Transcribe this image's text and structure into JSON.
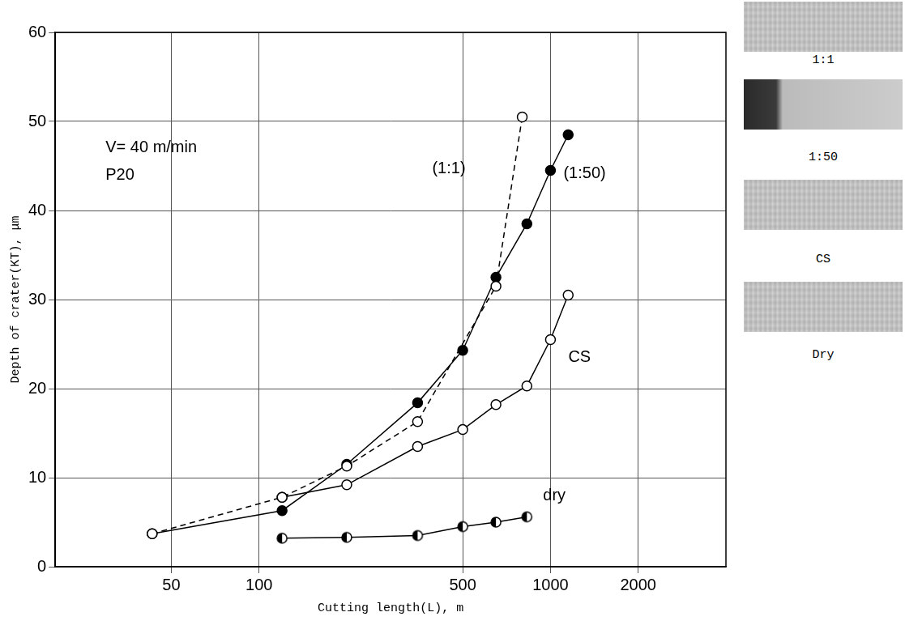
{
  "chart_data": {
    "type": "line",
    "x_label": "Cutting length(L), m",
    "y_label": "Depth of crater(KT), μm",
    "annotations": [
      "V= 40 m/min",
      "P20"
    ],
    "log": "x",
    "xlim": [
      20,
      4000
    ],
    "xticks": [
      50,
      100,
      500,
      1000,
      2000
    ],
    "ylim": [
      0,
      60
    ],
    "yticks": [
      0,
      10,
      20,
      30,
      40,
      50,
      60
    ],
    "grid": true,
    "series": [
      {
        "name": "(1:1)",
        "color": "#000000",
        "marker": "open_circle",
        "line_style": "dashed",
        "x": [
          43,
          120,
          200,
          350,
          650,
          800
        ],
        "values": [
          3.7,
          7.8,
          11.3,
          16.3,
          31.5,
          50.5
        ]
      },
      {
        "name": "(1:50)",
        "color": "#000000",
        "marker": "filled_circle",
        "line_style": "solid",
        "x": [
          43,
          120,
          200,
          350,
          500,
          650,
          830,
          1000,
          1150
        ],
        "values": [
          3.7,
          6.3,
          11.5,
          18.4,
          24.3,
          32.5,
          38.5,
          44.5,
          48.5
        ]
      },
      {
        "name": "CS",
        "color": "#000000",
        "marker": "open_circle",
        "line_style": "solid",
        "x": [
          120,
          200,
          350,
          500,
          650,
          830,
          1000,
          1150
        ],
        "values": [
          7.8,
          9.2,
          13.5,
          15.4,
          18.2,
          20.3,
          25.5,
          30.5
        ]
      },
      {
        "name": "dry",
        "color": "#000000",
        "marker": "half_filled_circle",
        "line_style": "solid",
        "x": [
          120,
          200,
          350,
          500,
          650,
          830
        ],
        "values": [
          3.2,
          3.3,
          3.5,
          4.5,
          5.0,
          5.6
        ]
      }
    ]
  },
  "photo_labels": [
    "1:1",
    "1:50",
    "CS",
    "Dry"
  ]
}
